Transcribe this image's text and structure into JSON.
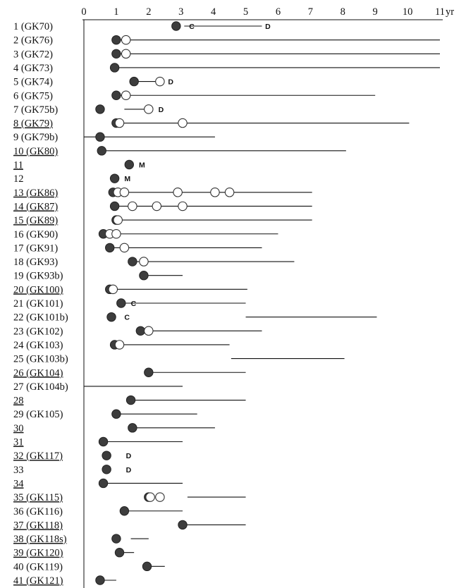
{
  "chart_data": {
    "type": "timeline",
    "x_unit": "yr",
    "xlim": [
      0,
      11
    ],
    "x_ticks": [
      "0",
      "1",
      "2",
      "3",
      "4",
      "5",
      "6",
      "7",
      "8",
      "9",
      "10",
      "11"
    ],
    "colors": {
      "filled_marker": "#3d3d3d",
      "open_marker": "#ffffff",
      "line": "#111111"
    },
    "rows": [
      {
        "label": "1 (GK70)",
        "underline": false,
        "segments": [
          [
            3.1,
            5.5
          ]
        ],
        "markers": [
          {
            "x": 2.85,
            "type": "filled"
          }
        ],
        "annotations": [
          {
            "text": "C",
            "x": 3.25
          },
          {
            "text": "D",
            "x": 5.6
          }
        ]
      },
      {
        "label": "2 (GK76)",
        "underline": false,
        "segments": [
          [
            1.0,
            11.0
          ]
        ],
        "markers": [
          {
            "x": 1.0,
            "type": "filled"
          },
          {
            "x": 1.3,
            "type": "open"
          }
        ],
        "annotations": []
      },
      {
        "label": "3 (GK72)",
        "underline": false,
        "segments": [
          [
            1.0,
            11.0
          ]
        ],
        "markers": [
          {
            "x": 1.0,
            "type": "filled"
          },
          {
            "x": 1.3,
            "type": "open"
          }
        ],
        "annotations": []
      },
      {
        "label": "4 (GK73)",
        "underline": false,
        "segments": [
          [
            0.95,
            11.0
          ]
        ],
        "markers": [
          {
            "x": 0.95,
            "type": "filled"
          }
        ],
        "annotations": []
      },
      {
        "label": "5 (GK74)",
        "underline": false,
        "segments": [
          [
            1.55,
            2.3
          ]
        ],
        "markers": [
          {
            "x": 1.55,
            "type": "filled"
          },
          {
            "x": 2.35,
            "type": "open"
          }
        ],
        "annotations": [
          {
            "text": "D",
            "x": 2.6
          }
        ]
      },
      {
        "label": "6 (GK75)",
        "underline": false,
        "segments": [
          [
            1.0,
            9.0
          ]
        ],
        "markers": [
          {
            "x": 1.0,
            "type": "filled"
          },
          {
            "x": 1.3,
            "type": "open"
          }
        ],
        "annotations": []
      },
      {
        "label": "7 (GK75b)",
        "underline": false,
        "segments": [
          [
            1.25,
            2.0
          ]
        ],
        "markers": [
          {
            "x": 0.5,
            "type": "filled"
          },
          {
            "x": 2.0,
            "type": "open"
          }
        ],
        "annotations": [
          {
            "text": "D",
            "x": 2.3
          }
        ]
      },
      {
        "label": "8 (GK79)",
        "underline": true,
        "segments": [
          [
            1.0,
            10.05
          ]
        ],
        "markers": [
          {
            "x": 1.0,
            "type": "half"
          },
          {
            "x": 1.1,
            "type": "open"
          },
          {
            "x": 3.05,
            "type": "open"
          }
        ],
        "annotations": []
      },
      {
        "label": "9 (GK79b)",
        "underline": false,
        "segments": [
          [
            0.0,
            4.05
          ]
        ],
        "markers": [
          {
            "x": 0.5,
            "type": "filled"
          }
        ],
        "annotations": []
      },
      {
        "label": "10 (GK80)",
        "underline": true,
        "segments": [
          [
            0.55,
            8.1
          ]
        ],
        "markers": [
          {
            "x": 0.55,
            "type": "filled"
          }
        ],
        "annotations": []
      },
      {
        "label": "11",
        "underline": true,
        "segments": [],
        "markers": [
          {
            "x": 1.4,
            "type": "filled"
          }
        ],
        "annotations": [
          {
            "text": "M",
            "x": 1.7
          }
        ]
      },
      {
        "label": "12",
        "underline": false,
        "segments": [],
        "markers": [
          {
            "x": 0.95,
            "type": "filled"
          }
        ],
        "annotations": [
          {
            "text": "M",
            "x": 1.25
          }
        ]
      },
      {
        "label": "13 (GK86)",
        "underline": true,
        "segments": [
          [
            0.9,
            7.05
          ]
        ],
        "markers": [
          {
            "x": 0.9,
            "type": "filled"
          },
          {
            "x": 1.05,
            "type": "open"
          },
          {
            "x": 1.25,
            "type": "open"
          },
          {
            "x": 2.9,
            "type": "open"
          },
          {
            "x": 4.05,
            "type": "open"
          },
          {
            "x": 4.5,
            "type": "open"
          }
        ],
        "annotations": []
      },
      {
        "label": "14 (GK87)",
        "underline": true,
        "segments": [
          [
            0.95,
            7.05
          ]
        ],
        "markers": [
          {
            "x": 0.95,
            "type": "filled"
          },
          {
            "x": 1.5,
            "type": "open"
          },
          {
            "x": 2.25,
            "type": "open"
          },
          {
            "x": 3.05,
            "type": "open"
          }
        ],
        "annotations": []
      },
      {
        "label": "15 (GK89)",
        "underline": true,
        "segments": [
          [
            1.0,
            7.05
          ]
        ],
        "markers": [
          {
            "x": 1.0,
            "type": "half"
          },
          {
            "x": 1.05,
            "type": "open"
          }
        ],
        "annotations": []
      },
      {
        "label": "16 (GK90)",
        "underline": false,
        "segments": [
          [
            0.6,
            6.0
          ]
        ],
        "markers": [
          {
            "x": 0.6,
            "type": "filled"
          },
          {
            "x": 0.8,
            "type": "open"
          },
          {
            "x": 1.0,
            "type": "open"
          }
        ],
        "annotations": []
      },
      {
        "label": "17 (GK91)",
        "underline": false,
        "segments": [
          [
            0.8,
            5.5
          ]
        ],
        "markers": [
          {
            "x": 0.8,
            "type": "filled"
          },
          {
            "x": 1.25,
            "type": "open"
          }
        ],
        "annotations": []
      },
      {
        "label": "18 (GK93)",
        "underline": false,
        "segments": [
          [
            1.5,
            6.5
          ]
        ],
        "markers": [
          {
            "x": 1.5,
            "type": "filled"
          },
          {
            "x": 1.85,
            "type": "open"
          }
        ],
        "annotations": []
      },
      {
        "label": "19 (GK93b)",
        "underline": false,
        "segments": [
          [
            1.85,
            3.05
          ]
        ],
        "markers": [
          {
            "x": 1.85,
            "type": "filled"
          }
        ],
        "annotations": []
      },
      {
        "label": "20 (GK100)",
        "underline": true,
        "segments": [
          [
            0.85,
            5.05
          ]
        ],
        "markers": [
          {
            "x": 0.8,
            "type": "half"
          },
          {
            "x": 0.9,
            "type": "open"
          }
        ],
        "annotations": []
      },
      {
        "label": "21 (GK101)",
        "underline": false,
        "segments": [
          [
            1.15,
            5.0
          ]
        ],
        "markers": [
          {
            "x": 1.15,
            "type": "filled"
          }
        ],
        "annotations": [
          {
            "text": "C",
            "x": 1.45
          }
        ]
      },
      {
        "label": "22 (GK101b)",
        "underline": false,
        "segments": [
          [
            5.0,
            9.05
          ]
        ],
        "markers": [
          {
            "x": 0.85,
            "type": "filled"
          }
        ],
        "annotations": [
          {
            "text": "C",
            "x": 1.25
          }
        ]
      },
      {
        "label": "23 (GK102)",
        "underline": false,
        "segments": [
          [
            1.75,
            5.5
          ]
        ],
        "markers": [
          {
            "x": 1.75,
            "type": "filled"
          },
          {
            "x": 2.0,
            "type": "open"
          }
        ],
        "annotations": []
      },
      {
        "label": "24 (GK103)",
        "underline": false,
        "segments": [
          [
            0.95,
            4.5
          ]
        ],
        "markers": [
          {
            "x": 0.95,
            "type": "half"
          },
          {
            "x": 1.1,
            "type": "open"
          }
        ],
        "annotations": []
      },
      {
        "label": "25 (GK103b)",
        "underline": false,
        "segments": [
          [
            4.55,
            8.05
          ]
        ],
        "markers": [],
        "annotations": []
      },
      {
        "label": "26 (GK104)",
        "underline": true,
        "segments": [
          [
            2.0,
            5.0
          ]
        ],
        "markers": [
          {
            "x": 2.0,
            "type": "filled"
          }
        ],
        "annotations": []
      },
      {
        "label": "27 (GK104b)",
        "underline": false,
        "segments": [
          [
            0.0,
            3.05
          ]
        ],
        "markers": [],
        "annotations": []
      },
      {
        "label": "28",
        "underline": true,
        "segments": [
          [
            1.45,
            5.0
          ]
        ],
        "markers": [
          {
            "x": 1.45,
            "type": "filled"
          }
        ],
        "annotations": []
      },
      {
        "label": "29 (GK105)",
        "underline": false,
        "segments": [
          [
            1.0,
            3.5
          ]
        ],
        "markers": [
          {
            "x": 1.0,
            "type": "filled"
          }
        ],
        "annotations": []
      },
      {
        "label": "30",
        "underline": true,
        "segments": [
          [
            1.5,
            4.05
          ]
        ],
        "markers": [
          {
            "x": 1.5,
            "type": "filled"
          }
        ],
        "annotations": []
      },
      {
        "label": "31",
        "underline": true,
        "segments": [
          [
            0.6,
            3.05
          ]
        ],
        "markers": [
          {
            "x": 0.6,
            "type": "filled"
          }
        ],
        "annotations": []
      },
      {
        "label": "32 (GK117)",
        "underline": true,
        "segments": [],
        "markers": [
          {
            "x": 0.7,
            "type": "filled"
          }
        ],
        "annotations": [
          {
            "text": "D",
            "x": 1.3
          }
        ]
      },
      {
        "label": "33",
        "underline": false,
        "segments": [],
        "markers": [
          {
            "x": 0.7,
            "type": "filled"
          }
        ],
        "annotations": [
          {
            "text": "D",
            "x": 1.3
          }
        ]
      },
      {
        "label": "34",
        "underline": true,
        "segments": [
          [
            0.6,
            3.05
          ]
        ],
        "markers": [
          {
            "x": 0.6,
            "type": "filled"
          }
        ],
        "annotations": []
      },
      {
        "label": "35 (GK115)",
        "underline": true,
        "segments": [
          [
            3.2,
            5.0
          ]
        ],
        "markers": [
          {
            "x": 2.0,
            "type": "half"
          },
          {
            "x": 2.05,
            "type": "open"
          },
          {
            "x": 2.35,
            "type": "open"
          }
        ],
        "annotations": []
      },
      {
        "label": "36 (GK116)",
        "underline": false,
        "segments": [
          [
            1.25,
            3.05
          ]
        ],
        "markers": [
          {
            "x": 1.25,
            "type": "filled"
          }
        ],
        "annotations": []
      },
      {
        "label": "37 (GK118)",
        "underline": true,
        "segments": [
          [
            3.05,
            5.0
          ]
        ],
        "markers": [
          {
            "x": 3.05,
            "type": "filled"
          }
        ],
        "annotations": []
      },
      {
        "label": "38 (GK118s)",
        "underline": true,
        "segments": [
          [
            1.45,
            2.0
          ]
        ],
        "markers": [
          {
            "x": 1.0,
            "type": "filled"
          }
        ],
        "annotations": []
      },
      {
        "label": "39 (GK120)",
        "underline": true,
        "segments": [
          [
            1.1,
            1.55
          ]
        ],
        "markers": [
          {
            "x": 1.1,
            "type": "filled"
          }
        ],
        "annotations": []
      },
      {
        "label": "40 (GK119)",
        "underline": false,
        "segments": [
          [
            1.95,
            2.5
          ]
        ],
        "markers": [
          {
            "x": 1.95,
            "type": "filled"
          }
        ],
        "annotations": []
      },
      {
        "label": "41 (GK121)",
        "underline": true,
        "segments": [
          [
            0.5,
            1.0
          ]
        ],
        "markers": [
          {
            "x": 0.5,
            "type": "filled"
          }
        ],
        "annotations": []
      }
    ]
  }
}
